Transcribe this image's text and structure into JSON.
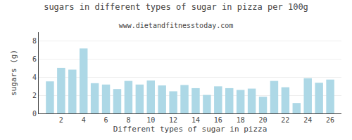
{
  "chart_data": {
    "type": "bar",
    "title": "sugars in different types of sugar in pizza per 100g",
    "subtitle": "www.dietandfitnesstoday.com",
    "xlabel": "Different types of sugar in pizza",
    "ylabel": "sugars (g)",
    "x": [
      1,
      2,
      3,
      4,
      5,
      6,
      7,
      8,
      9,
      10,
      11,
      12,
      13,
      14,
      15,
      16,
      17,
      18,
      19,
      20,
      21,
      22,
      23,
      24,
      25,
      26
    ],
    "values": [
      3.55,
      5.05,
      4.85,
      7.2,
      3.35,
      3.2,
      2.7,
      3.6,
      3.2,
      3.65,
      3.1,
      2.45,
      3.15,
      2.8,
      2.05,
      3.0,
      2.8,
      2.6,
      2.75,
      1.85,
      3.6,
      2.9,
      1.15,
      3.9,
      3.4,
      3.75
    ],
    "color": "#add8e6",
    "xlim": [
      0,
      27
    ],
    "xticks": [
      2,
      4,
      6,
      8,
      10,
      12,
      14,
      16,
      18,
      20,
      22,
      24,
      26
    ],
    "ylim": [
      0,
      9
    ],
    "yticks": [
      0,
      2,
      4,
      6,
      8
    ],
    "grid": true
  }
}
